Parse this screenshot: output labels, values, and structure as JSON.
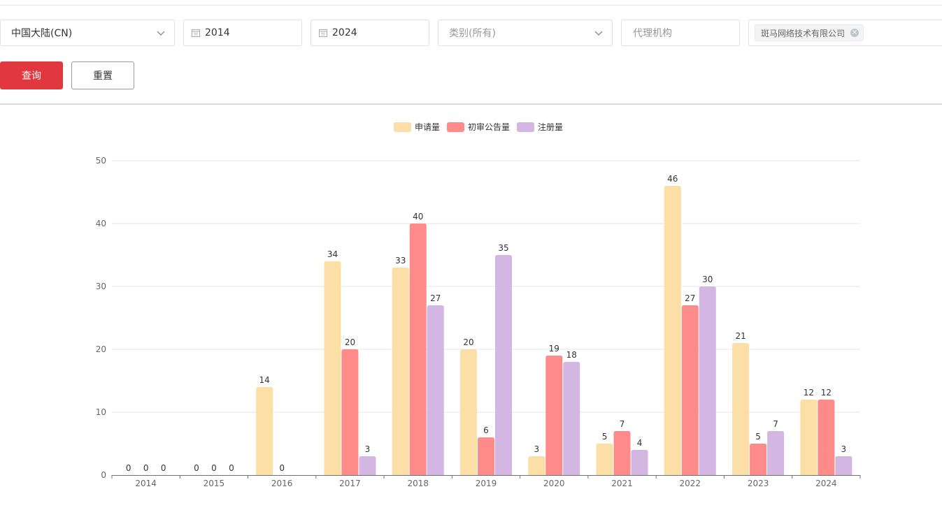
{
  "filters": {
    "region": "中国大陆(CN)",
    "start_year": "2014",
    "end_year": "2024",
    "category": "类别(所有)",
    "agency_placeholder": "代理机构",
    "applicant_tag": "斑马网络技术有限公司"
  },
  "buttons": {
    "query": "查询",
    "reset": "重置"
  },
  "colors": {
    "primary": "#e0383e",
    "series": [
      "#fbdfa6",
      "#fe8a8a",
      "#d3b6e2"
    ]
  },
  "chart_data": {
    "type": "bar",
    "categories": [
      "2014",
      "2015",
      "2016",
      "2017",
      "2018",
      "2019",
      "2020",
      "2021",
      "2022",
      "2023",
      "2024"
    ],
    "series": [
      {
        "name": "申请量",
        "values": [
          0,
          0,
          14,
          34,
          33,
          20,
          3,
          5,
          46,
          21,
          12
        ]
      },
      {
        "name": "初审公告量",
        "values": [
          0,
          0,
          0,
          20,
          40,
          6,
          19,
          7,
          27,
          5,
          12
        ]
      },
      {
        "name": "注册量",
        "values": [
          0,
          0,
          null,
          3,
          27,
          35,
          18,
          4,
          30,
          7,
          3
        ]
      }
    ],
    "ylim": [
      0,
      50
    ],
    "yticks": [
      0,
      10,
      20,
      30,
      40,
      50
    ],
    "grid": true,
    "legend": "top-center",
    "data_labels": true
  }
}
